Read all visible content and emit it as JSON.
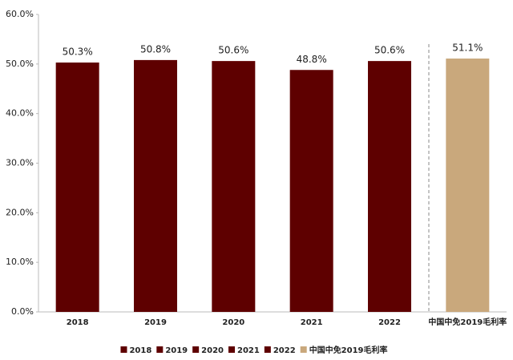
{
  "chart_data": {
    "type": "bar",
    "categories": [
      "2018",
      "2019",
      "2020",
      "2021",
      "2022",
      "中国中免2019毛利率"
    ],
    "values": [
      50.3,
      50.8,
      50.6,
      48.8,
      50.6,
      51.1
    ],
    "value_labels": [
      "50.3%",
      "50.8%",
      "50.6%",
      "48.8%",
      "50.6%",
      "51.1%"
    ],
    "colors": [
      "#5e0000",
      "#5e0000",
      "#5e0000",
      "#5e0000",
      "#5e0000",
      "#c9a87c"
    ],
    "ylim": [
      0,
      60
    ],
    "yticks": [
      {
        "value": 0,
        "label": "0.0%"
      },
      {
        "value": 10,
        "label": "10.0%"
      },
      {
        "value": 20,
        "label": "20.0%"
      },
      {
        "value": 30,
        "label": "30.0%"
      },
      {
        "value": 40,
        "label": "40.0%"
      },
      {
        "value": 50,
        "label": "50.0%"
      },
      {
        "value": 60,
        "label": "60.0%"
      }
    ],
    "legend": "bottom"
  }
}
